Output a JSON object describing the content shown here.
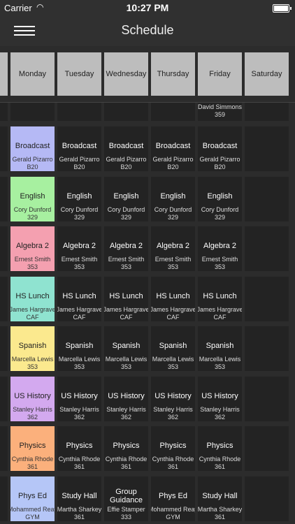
{
  "status": {
    "carrier": "Carrier",
    "time": "10:27 PM"
  },
  "nav": {
    "title": "Schedule"
  },
  "days": [
    "",
    "Monday",
    "Tuesday",
    "Wednesday",
    "Thursday",
    "Friday",
    "Saturday"
  ],
  "partial_row": {
    "teacher": "David Simmons",
    "room": "359"
  },
  "periods": [
    {
      "color": "#b5b9f5",
      "cells": [
        {
          "subject": "Broadcast",
          "teacher": "Gerald Pizarro",
          "room": "B20"
        },
        {
          "subject": "Broadcast",
          "teacher": "Gerald Pizarro",
          "room": "B20"
        },
        {
          "subject": "Broadcast",
          "teacher": "Gerald Pizarro",
          "room": "B20"
        },
        {
          "subject": "Broadcast",
          "teacher": "Gerald Pizarro",
          "room": "B20"
        },
        {
          "subject": "Broadcast",
          "teacher": "Gerald Pizarro",
          "room": "B20"
        }
      ]
    },
    {
      "color": "#a7f0a0",
      "cells": [
        {
          "subject": "English",
          "teacher": "Cory Dunford",
          "room": "329"
        },
        {
          "subject": "English",
          "teacher": "Cory Dunford",
          "room": "329"
        },
        {
          "subject": "English",
          "teacher": "Cory Dunford",
          "room": "329"
        },
        {
          "subject": "English",
          "teacher": "Cory Dunford",
          "room": "329"
        },
        {
          "subject": "English",
          "teacher": "Cory Dunford",
          "room": "329"
        }
      ]
    },
    {
      "color": "#f4a0b0",
      "cells": [
        {
          "subject": "Algebra 2",
          "teacher": "Ernest Smith",
          "room": "353"
        },
        {
          "subject": "Algebra 2",
          "teacher": "Ernest Smith",
          "room": "353"
        },
        {
          "subject": "Algebra 2",
          "teacher": "Ernest Smith",
          "room": "353"
        },
        {
          "subject": "Algebra 2",
          "teacher": "Ernest Smith",
          "room": "353"
        },
        {
          "subject": "Algebra 2",
          "teacher": "Ernest Smith",
          "room": "353"
        }
      ]
    },
    {
      "color": "#8fe3d0",
      "cells": [
        {
          "subject": "HS Lunch",
          "teacher": "James Hargrave",
          "room": "CAF"
        },
        {
          "subject": "HS Lunch",
          "teacher": "James Hargrave",
          "room": "CAF"
        },
        {
          "subject": "HS Lunch",
          "teacher": "James Hargrave",
          "room": "CAF"
        },
        {
          "subject": "HS Lunch",
          "teacher": "James Hargrave",
          "room": "CAF"
        },
        {
          "subject": "HS Lunch",
          "teacher": "James Hargrave",
          "room": "CAF"
        }
      ]
    },
    {
      "color": "#fbe98e",
      "cells": [
        {
          "subject": "Spanish",
          "teacher": "Marcella Lewis",
          "room": "353"
        },
        {
          "subject": "Spanish",
          "teacher": "Marcella Lewis",
          "room": "353"
        },
        {
          "subject": "Spanish",
          "teacher": "Marcella Lewis",
          "room": "353"
        },
        {
          "subject": "Spanish",
          "teacher": "Marcella Lewis",
          "room": "353"
        },
        {
          "subject": "Spanish",
          "teacher": "Marcella Lewis",
          "room": "353"
        }
      ]
    },
    {
      "color": "#d3a9ef",
      "cells": [
        {
          "subject": "US History",
          "teacher": "Stanley Harris",
          "room": "362"
        },
        {
          "subject": "US History",
          "teacher": "Stanley Harris",
          "room": "362"
        },
        {
          "subject": "US History",
          "teacher": "Stanley Harris",
          "room": "362"
        },
        {
          "subject": "US History",
          "teacher": "Stanley Harris",
          "room": "362"
        },
        {
          "subject": "US History",
          "teacher": "Stanley Harris",
          "room": "362"
        }
      ]
    },
    {
      "color": "#fbb07c",
      "cells": [
        {
          "subject": "Physics",
          "teacher": "Cynthia Rhode",
          "room": "361"
        },
        {
          "subject": "Physics",
          "teacher": "Cynthia Rhode",
          "room": "361"
        },
        {
          "subject": "Physics",
          "teacher": "Cynthia Rhode",
          "room": "361"
        },
        {
          "subject": "Physics",
          "teacher": "Cynthia Rhode",
          "room": "361"
        },
        {
          "subject": "Physics",
          "teacher": "Cynthia Rhode",
          "room": "361"
        }
      ]
    },
    {
      "color": "#b5c6f7",
      "cells": [
        {
          "subject": "Phys Ed",
          "teacher": "Mohammed Reay",
          "room": "GYM"
        },
        {
          "subject": "Study Hall",
          "teacher": "Martha Sharkey",
          "room": "361"
        },
        {
          "subject": "Group Guidance",
          "teacher": "Effie Stamper",
          "room": "333"
        },
        {
          "subject": "Phys Ed",
          "teacher": "Mohammed Reay",
          "room": "GYM"
        },
        {
          "subject": "Study Hall",
          "teacher": "Martha Sharkey",
          "room": "361"
        }
      ]
    }
  ]
}
